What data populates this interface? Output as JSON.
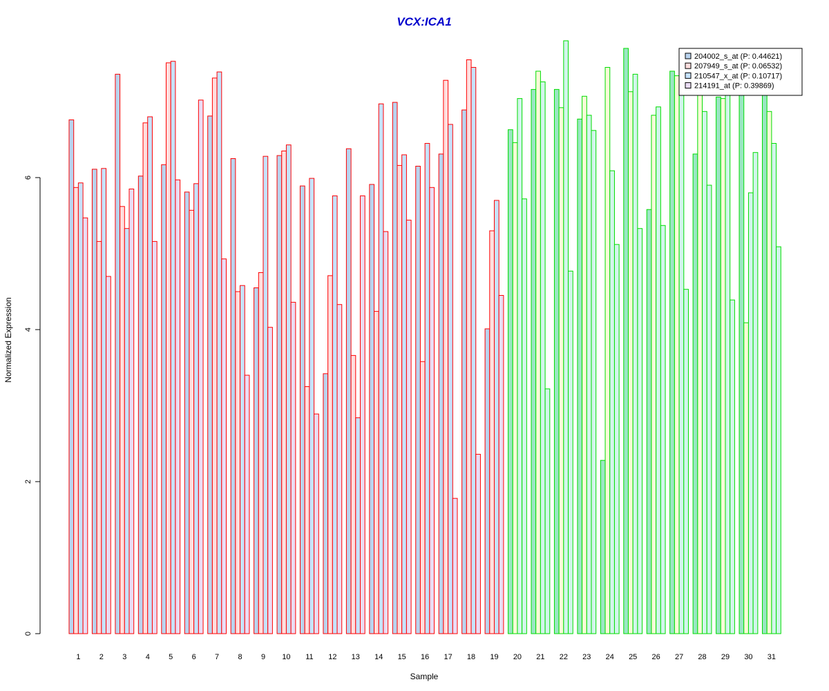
{
  "chart_data": {
    "type": "bar",
    "title": "VCX:ICA1",
    "title_color": "#0000CC",
    "xlabel": "Sample",
    "ylabel": "Normalized Expression",
    "ylim": [
      0,
      7.8
    ],
    "yticks": [
      0,
      2,
      4,
      6
    ],
    "grid": false,
    "legend_position": "top-right",
    "categories": [
      "1",
      "2",
      "3",
      "4",
      "5",
      "6",
      "7",
      "8",
      "9",
      "10",
      "11",
      "12",
      "13",
      "14",
      "15",
      "16",
      "17",
      "18",
      "19",
      "20",
      "21",
      "22",
      "23",
      "24",
      "25",
      "26",
      "27",
      "28",
      "29",
      "30",
      "31"
    ],
    "group_colors": {
      "group1_samples": "1-19",
      "group1_border": "#FF0000",
      "group2_samples": "20-31",
      "group2_border": "#00DD00"
    },
    "series": [
      {
        "name": "204002_s_at (P: 0.44621)",
        "fill": "#B9D3EE",
        "fill_group2": "#9AE6C3",
        "values": [
          6.76,
          6.11,
          7.36,
          6.02,
          6.17,
          5.81,
          6.81,
          6.25,
          4.55,
          6.29,
          5.89,
          3.42,
          6.38,
          5.91,
          6.99,
          6.15,
          6.31,
          6.89,
          4.01,
          6.63,
          7.16,
          7.16,
          6.77,
          2.28,
          7.7,
          5.58,
          7.4,
          6.31,
          7.06,
          7.2,
          7.1
        ]
      },
      {
        "name": "207949_s_at (P: 0.06532)",
        "fill": "#FFDEDE",
        "fill_group2": "#FAFAD8",
        "values": [
          5.87,
          5.16,
          5.62,
          6.72,
          7.51,
          5.57,
          7.31,
          4.5,
          4.75,
          6.35,
          3.25,
          4.71,
          3.66,
          4.24,
          6.16,
          3.58,
          7.28,
          7.55,
          5.3,
          6.46,
          7.4,
          6.92,
          7.07,
          7.45,
          7.13,
          6.82,
          7.34,
          7.16,
          7.04,
          4.09,
          6.87
        ]
      },
      {
        "name": "210547_x_at (P: 0.10717)",
        "fill": "#C6E2FF",
        "fill_group2": "#D2F5EC",
        "values": [
          5.93,
          6.12,
          5.33,
          6.8,
          7.53,
          5.92,
          7.39,
          4.58,
          6.28,
          6.43,
          5.99,
          5.76,
          2.84,
          6.97,
          6.3,
          6.45,
          6.7,
          7.45,
          5.7,
          7.04,
          7.26,
          7.8,
          6.82,
          6.09,
          7.36,
          6.93,
          7.66,
          6.87,
          7.6,
          5.8,
          6.45
        ]
      },
      {
        "name": "214191_at (P: 0.39869)",
        "fill": "#EADCF5",
        "fill_group2": "#D2F5EC",
        "values": [
          5.47,
          4.7,
          5.85,
          5.16,
          5.97,
          7.02,
          4.93,
          3.4,
          4.03,
          4.36,
          2.89,
          4.33,
          5.76,
          5.29,
          5.44,
          5.87,
          1.78,
          2.36,
          4.45,
          5.72,
          3.22,
          4.77,
          6.62,
          5.12,
          5.33,
          5.37,
          4.53,
          5.9,
          4.39,
          6.33,
          5.09
        ]
      }
    ]
  }
}
